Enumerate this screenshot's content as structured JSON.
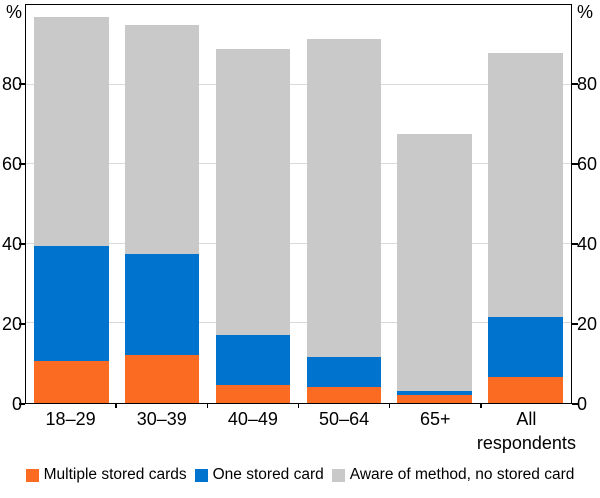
{
  "chart_data": {
    "type": "bar",
    "stacked": true,
    "title": "",
    "categories": [
      "18–29",
      "30–39",
      "40–49",
      "50–64",
      "65+",
      "All respondents"
    ],
    "category_label_lines": [
      [
        "18–29"
      ],
      [
        "30–39"
      ],
      [
        "40–49"
      ],
      [
        "50–64"
      ],
      [
        "65+"
      ],
      [
        "All",
        "respondents"
      ]
    ],
    "series": [
      {
        "name": "Multiple stored cards",
        "color": "#FB6B22",
        "values": [
          10.5,
          12,
          4.5,
          4,
          2,
          6.5
        ]
      },
      {
        "name": "One stored card",
        "color": "#0073CF",
        "values": [
          29,
          25.5,
          12.5,
          7.5,
          1,
          15
        ]
      },
      {
        "name": "Aware of method, no stored card",
        "color": "#C9C9C9",
        "values": [
          57.5,
          57.5,
          72,
          80,
          64.5,
          66.5
        ]
      }
    ],
    "stack_totals": [
      97,
      95,
      89,
      91.5,
      67.5,
      88
    ],
    "axis": {
      "unit": "%",
      "ylim": [
        0,
        100
      ],
      "yticks": [
        0,
        20,
        40,
        60,
        80
      ],
      "grid": true,
      "gridline_color": "#D9D9D9",
      "axis_color": "#000000",
      "legend_position": "bottom"
    }
  }
}
